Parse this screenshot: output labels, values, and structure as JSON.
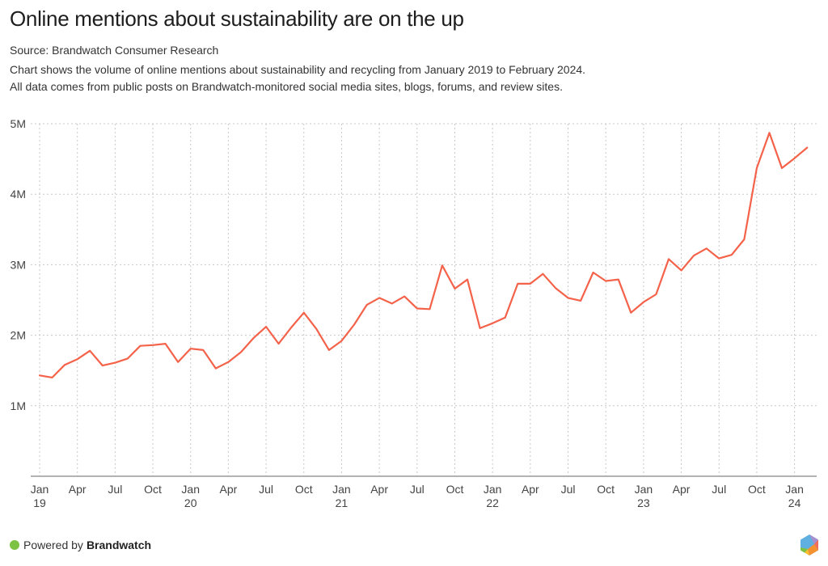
{
  "header": {
    "title": "Online mentions about sustainability are on the up",
    "source": "Source: Brandwatch Consumer Research",
    "description_lines": [
      "Chart shows the volume of online mentions about sustainability and recycling from January 2019 to February 2024.",
      "All data comes from public posts on Brandwatch-monitored social media sites, blogs, forums, and review sites."
    ]
  },
  "footer": {
    "powered_by": "Powered by",
    "brand": "Brandwatch",
    "dot_color": "#7dc242",
    "logo_icon": "brandwatch-hexagon-logo"
  },
  "chart_data": {
    "type": "line",
    "title": "Online mentions about sustainability are on the up",
    "xlabel": "",
    "ylabel": "",
    "ylim": [
      0,
      5000000
    ],
    "yticks": [
      {
        "value": 1000000,
        "label": "1M"
      },
      {
        "value": 2000000,
        "label": "2M"
      },
      {
        "value": 3000000,
        "label": "3M"
      },
      {
        "value": 4000000,
        "label": "4M"
      },
      {
        "value": 5000000,
        "label": "5M"
      }
    ],
    "xticks": [
      {
        "index": 0,
        "label": "Jan",
        "sub": "19"
      },
      {
        "index": 3,
        "label": "Apr",
        "sub": ""
      },
      {
        "index": 6,
        "label": "Jul",
        "sub": ""
      },
      {
        "index": 9,
        "label": "Oct",
        "sub": ""
      },
      {
        "index": 12,
        "label": "Jan",
        "sub": "20"
      },
      {
        "index": 15,
        "label": "Apr",
        "sub": ""
      },
      {
        "index": 18,
        "label": "Jul",
        "sub": ""
      },
      {
        "index": 21,
        "label": "Oct",
        "sub": ""
      },
      {
        "index": 24,
        "label": "Jan",
        "sub": "21"
      },
      {
        "index": 27,
        "label": "Apr",
        "sub": ""
      },
      {
        "index": 30,
        "label": "Jul",
        "sub": ""
      },
      {
        "index": 33,
        "label": "Oct",
        "sub": ""
      },
      {
        "index": 36,
        "label": "Jan",
        "sub": "22"
      },
      {
        "index": 39,
        "label": "Apr",
        "sub": ""
      },
      {
        "index": 42,
        "label": "Jul",
        "sub": ""
      },
      {
        "index": 45,
        "label": "Oct",
        "sub": ""
      },
      {
        "index": 48,
        "label": "Jan",
        "sub": "23"
      },
      {
        "index": 51,
        "label": "Apr",
        "sub": ""
      },
      {
        "index": 54,
        "label": "Jul",
        "sub": ""
      },
      {
        "index": 57,
        "label": "Oct",
        "sub": ""
      },
      {
        "index": 60,
        "label": "Jan",
        "sub": "24"
      }
    ],
    "grid": true,
    "legend": "none",
    "series": [
      {
        "name": "Online mentions",
        "color": "#f4624a",
        "x": [
          "2019-01",
          "2019-02",
          "2019-03",
          "2019-04",
          "2019-05",
          "2019-06",
          "2019-07",
          "2019-08",
          "2019-09",
          "2019-10",
          "2019-11",
          "2019-12",
          "2020-01",
          "2020-02",
          "2020-03",
          "2020-04",
          "2020-05",
          "2020-06",
          "2020-07",
          "2020-08",
          "2020-09",
          "2020-10",
          "2020-11",
          "2020-12",
          "2021-01",
          "2021-02",
          "2021-03",
          "2021-04",
          "2021-05",
          "2021-06",
          "2021-07",
          "2021-08",
          "2021-09",
          "2021-10",
          "2021-11",
          "2021-12",
          "2022-01",
          "2022-02",
          "2022-03",
          "2022-04",
          "2022-05",
          "2022-06",
          "2022-07",
          "2022-08",
          "2022-09",
          "2022-10",
          "2022-11",
          "2022-12",
          "2023-01",
          "2023-02",
          "2023-03",
          "2023-04",
          "2023-05",
          "2023-06",
          "2023-07",
          "2023-08",
          "2023-09",
          "2023-10",
          "2023-11",
          "2023-12",
          "2024-01",
          "2024-02"
        ],
        "values": [
          1430000,
          1400000,
          1580000,
          1660000,
          1780000,
          1570000,
          1610000,
          1670000,
          1850000,
          1860000,
          1880000,
          1620000,
          1810000,
          1790000,
          1530000,
          1620000,
          1760000,
          1960000,
          2120000,
          1880000,
          2110000,
          2320000,
          2090000,
          1790000,
          1920000,
          2150000,
          2430000,
          2530000,
          2450000,
          2550000,
          2380000,
          2370000,
          2990000,
          2660000,
          2790000,
          2100000,
          2170000,
          2250000,
          2730000,
          2730000,
          2870000,
          2670000,
          2530000,
          2490000,
          2890000,
          2770000,
          2790000,
          2320000,
          2470000,
          2580000,
          3080000,
          2920000,
          3130000,
          3230000,
          3090000,
          3140000,
          3360000,
          4370000,
          4870000,
          4370000,
          4510000,
          4660000
        ]
      }
    ]
  }
}
